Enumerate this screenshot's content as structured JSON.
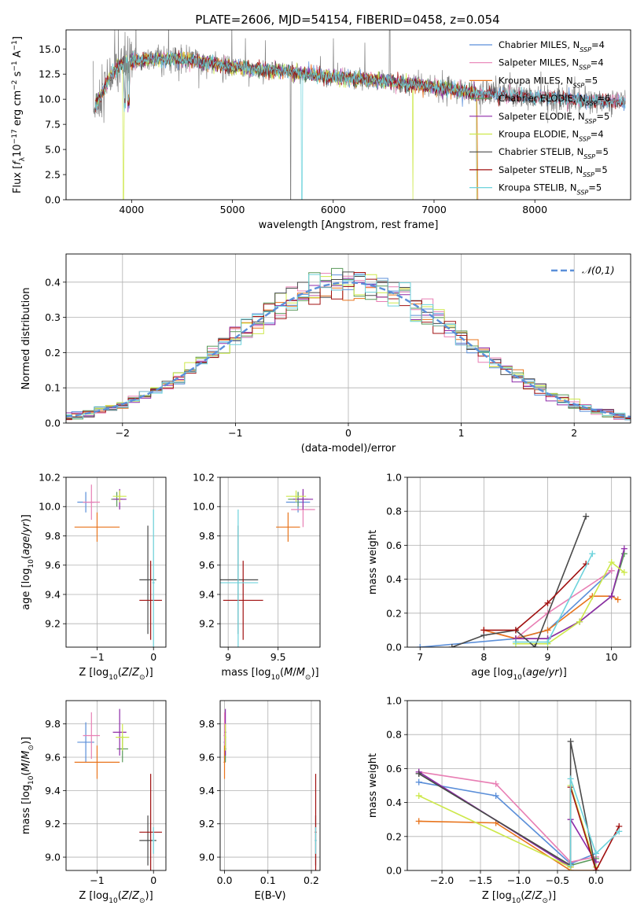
{
  "title": "PLATE=2606, MJD=54154, FIBERID=0458, z=0.054",
  "colors": {
    "Chabrier MILES": "#5b8fd9",
    "Salpeter MILES": "#e87fb4",
    "Kroupa MILES": "#e8741c",
    "Chabrier ELODIE": "#5a9a5a",
    "Salpeter ELODIE": "#8e2aa8",
    "Kroupa ELODIE": "#cde84a",
    "Chabrier STELIB": "#4a4a4a",
    "Salpeter STELIB": "#a01010",
    "Kroupa STELIB": "#6dd3dc",
    "spectrum": "#808080",
    "normal": "#5b8fd9"
  },
  "chart_data": [
    {
      "id": "spectrum",
      "type": "line",
      "xlabel": "wavelength [Angstrom, rest frame]",
      "ylabel": "Flux [f_λ10^-17 erg cm^-2 s^-1 A^-1]",
      "xlim": [
        3350,
        8950
      ],
      "ylim": [
        0,
        16.9
      ],
      "xticks": [
        4000,
        5000,
        6000,
        7000,
        8000
      ],
      "yticks": [
        0.0,
        2.5,
        5.0,
        7.5,
        10.0,
        12.5,
        15.0
      ],
      "ytick_labels": [
        "0.0",
        "2.5",
        "5.0",
        "7.5",
        "10.0",
        "12.5",
        "15.0"
      ],
      "legend_position": "top-right",
      "legend": [
        {
          "model": "Chabrier MILES",
          "label": "Chabrier MILES, N",
          "sub": "SSP",
          "tail": "=4"
        },
        {
          "model": "Salpeter MILES",
          "label": "Salpeter MILES, N",
          "sub": "SSP",
          "tail": "=4"
        },
        {
          "model": "Kroupa MILES",
          "label": "Kroupa MILES, N",
          "sub": "SSP",
          "tail": "=5"
        },
        {
          "model": "Chabrier ELODIE",
          "label": "Chabrier ELODIE, N",
          "sub": "SSP",
          "tail": "=6"
        },
        {
          "model": "Salpeter ELODIE",
          "label": "Salpeter ELODIE, N",
          "sub": "SSP",
          "tail": "=5"
        },
        {
          "model": "Kroupa ELODIE",
          "label": "Kroupa ELODIE, N",
          "sub": "SSP",
          "tail": "=4"
        },
        {
          "model": "Chabrier STELIB",
          "label": "Chabrier STELIB, N",
          "sub": "SSP",
          "tail": "=5"
        },
        {
          "model": "Salpeter STELIB",
          "label": "Salpeter STELIB, N",
          "sub": "SSP",
          "tail": "=5"
        },
        {
          "model": "Kroupa STELIB",
          "label": "Kroupa STELIB, N",
          "sub": "SSP",
          "tail": "=5"
        }
      ],
      "continuum": [
        [
          3600,
          8.5
        ],
        [
          3700,
          10.5
        ],
        [
          3800,
          12.5
        ],
        [
          3900,
          13.5
        ],
        [
          4000,
          13.8
        ],
        [
          4200,
          14.0
        ],
        [
          4500,
          14.0
        ],
        [
          4800,
          13.6
        ],
        [
          5000,
          13.2
        ],
        [
          5500,
          12.8
        ],
        [
          6000,
          12.2
        ],
        [
          6500,
          11.8
        ],
        [
          7000,
          11.2
        ],
        [
          7500,
          10.5
        ],
        [
          8000,
          10.2
        ],
        [
          8500,
          9.9
        ],
        [
          8900,
          9.7
        ]
      ]
    },
    {
      "id": "residuals",
      "type": "histogram",
      "xlabel": "(data-model)/error",
      "ylabel": "Normed distribution",
      "xlim": [
        -2.5,
        2.5
      ],
      "ylim": [
        0,
        0.48
      ],
      "xticks": [
        -2,
        -1,
        0,
        1,
        2
      ],
      "yticks": [
        0.0,
        0.1,
        0.2,
        0.3,
        0.4
      ],
      "ytick_labels": [
        "0.0",
        "0.1",
        "0.2",
        "0.3",
        "0.4"
      ],
      "legend": "𝒩(0,1)",
      "legend_position": "top-right",
      "bin_width": 0.1
    },
    {
      "id": "age_vs_Z",
      "type": "errorbar",
      "xlabel": "Z [log10(Z/Z⊙)]",
      "ylabel": "age [log10(age/yr)]",
      "xlim": [
        -1.55,
        0.22
      ],
      "ylim": [
        9.04,
        10.2
      ],
      "xticks": [
        -1,
        0
      ],
      "yticks": [
        9.2,
        9.4,
        9.6,
        9.8,
        10.0,
        10.2
      ],
      "ytick_labels": [
        "9.2",
        "9.4",
        "9.6",
        "9.8",
        "10.0",
        "10.2"
      ],
      "points": [
        {
          "model": "Chabrier MILES",
          "x": -1.2,
          "xerr": 0.15,
          "y": 10.03,
          "yerr": 0.07
        },
        {
          "model": "Salpeter MILES",
          "x": -1.1,
          "xerr": 0.15,
          "y": 10.03,
          "yerr": 0.12
        },
        {
          "model": "Kroupa MILES",
          "x": -1.0,
          "xerr": 0.4,
          "y": 9.86,
          "yerr": 0.1
        },
        {
          "model": "Chabrier ELODIE",
          "x": -0.65,
          "xerr": 0.1,
          "y": 10.05,
          "yerr": 0.05
        },
        {
          "model": "Salpeter ELODIE",
          "x": -0.6,
          "xerr": 0.12,
          "y": 10.05,
          "yerr": 0.07
        },
        {
          "model": "Kroupa ELODIE",
          "x": -0.6,
          "xerr": 0.12,
          "y": 10.07,
          "yerr": 0.04
        },
        {
          "model": "Chabrier STELIB",
          "x": -0.1,
          "xerr": 0.15,
          "y": 9.5,
          "yerr": 0.37
        },
        {
          "model": "Salpeter STELIB",
          "x": -0.05,
          "xerr": 0.2,
          "y": 9.36,
          "yerr": 0.27
        },
        {
          "model": "Kroupa STELIB",
          "x": 0.0,
          "xerr": 0.02,
          "y": 9.48,
          "yerr": 0.5
        }
      ]
    },
    {
      "id": "age_vs_mass",
      "type": "errorbar",
      "xlabel": "mass [log10(M/M⊙)]",
      "ylabel": "",
      "xlim": [
        8.92,
        9.92
      ],
      "ylim": [
        9.04,
        10.2
      ],
      "xticks": [
        9.0,
        9.5
      ],
      "yticks": [
        9.2,
        9.4,
        9.6,
        9.8,
        10.0,
        10.2
      ],
      "ytick_labels": [
        "9.2",
        "9.4",
        "9.6",
        "9.8",
        "10.0",
        "10.2"
      ],
      "points": [
        {
          "model": "Chabrier MILES",
          "x": 9.7,
          "xerr": 0.12,
          "y": 10.03,
          "yerr": 0.07
        },
        {
          "model": "Salpeter MILES",
          "x": 9.75,
          "xerr": 0.12,
          "y": 9.98,
          "yerr": 0.12
        },
        {
          "model": "Kroupa MILES",
          "x": 9.6,
          "xerr": 0.12,
          "y": 9.86,
          "yerr": 0.1
        },
        {
          "model": "Chabrier ELODIE",
          "x": 9.7,
          "xerr": 0.1,
          "y": 10.05,
          "yerr": 0.05
        },
        {
          "model": "Salpeter ELODIE",
          "x": 9.75,
          "xerr": 0.1,
          "y": 10.05,
          "yerr": 0.07
        },
        {
          "model": "Kroupa ELODIE",
          "x": 9.68,
          "xerr": 0.1,
          "y": 10.07,
          "yerr": 0.04
        },
        {
          "model": "Chabrier STELIB",
          "x": 9.1,
          "xerr": 0.2,
          "y": 9.5,
          "yerr": 0.37
        },
        {
          "model": "Salpeter STELIB",
          "x": 9.15,
          "xerr": 0.2,
          "y": 9.36,
          "yerr": 0.27
        },
        {
          "model": "Kroupa STELIB",
          "x": 9.1,
          "xerr": 0.2,
          "y": 9.48,
          "yerr": 0.5
        }
      ]
    },
    {
      "id": "mass_weight_vs_age",
      "type": "line",
      "xlabel": "age [log10(age/yr)]",
      "ylabel": "mass weight",
      "xlim": [
        6.8,
        10.3
      ],
      "ylim": [
        0,
        1.0
      ],
      "xticks": [
        7,
        8,
        9,
        10
      ],
      "yticks": [
        0.0,
        0.2,
        0.4,
        0.6,
        0.8,
        1.0
      ],
      "ytick_labels": [
        "0.0",
        "0.2",
        "0.4",
        "0.6",
        "0.8",
        "1.0"
      ],
      "series": [
        {
          "model": "Chabrier MILES",
          "x": [
            7.0,
            8.5,
            9.0,
            10.0
          ],
          "y": [
            0.0,
            0.05,
            0.1,
            0.45
          ]
        },
        {
          "model": "Salpeter MILES",
          "x": [
            8.0,
            8.5,
            9.0,
            10.0
          ],
          "y": [
            0.1,
            0.05,
            0.2,
            0.45
          ]
        },
        {
          "model": "Kroupa MILES",
          "x": [
            8.0,
            8.5,
            9.0,
            9.7,
            10.0,
            10.1
          ],
          "y": [
            0.1,
            0.05,
            0.1,
            0.3,
            0.3,
            0.28
          ]
        },
        {
          "model": "Chabrier ELODIE",
          "x": [
            8.5,
            9.0,
            9.5,
            10.0,
            10.2
          ],
          "y": [
            0.05,
            0.05,
            0.15,
            0.3,
            0.55
          ]
        },
        {
          "model": "Salpeter ELODIE",
          "x": [
            8.5,
            9.0,
            9.5,
            10.0,
            10.2
          ],
          "y": [
            0.05,
            0.05,
            0.15,
            0.3,
            0.58
          ]
        },
        {
          "model": "Kroupa ELODIE",
          "x": [
            8.5,
            9.0,
            9.5,
            10.0,
            10.2
          ],
          "y": [
            0.02,
            0.02,
            0.15,
            0.5,
            0.44
          ]
        },
        {
          "model": "Chabrier STELIB",
          "x": [
            7.5,
            8.0,
            8.5,
            8.8,
            9.6
          ],
          "y": [
            0.0,
            0.07,
            0.1,
            0.0,
            0.77
          ]
        },
        {
          "model": "Salpeter STELIB",
          "x": [
            8.0,
            8.5,
            9.0,
            9.6
          ],
          "y": [
            0.1,
            0.1,
            0.26,
            0.49
          ]
        },
        {
          "model": "Kroupa STELIB",
          "x": [
            8.5,
            9.0,
            9.7
          ],
          "y": [
            0.03,
            0.03,
            0.55
          ]
        }
      ]
    },
    {
      "id": "mass_vs_Z",
      "type": "errorbar",
      "xlabel": "Z [log10(Z/Z⊙)]",
      "ylabel": "mass [log10(M/M⊙)]",
      "xlim": [
        -1.55,
        0.22
      ],
      "ylim": [
        8.92,
        9.94
      ],
      "xticks": [
        -1,
        0
      ],
      "yticks": [
        9.0,
        9.2,
        9.4,
        9.6,
        9.8
      ],
      "ytick_labels": [
        "9.0",
        "9.2",
        "9.4",
        "9.6",
        "9.8"
      ],
      "points": [
        {
          "model": "Chabrier MILES",
          "x": -1.2,
          "xerr": 0.15,
          "y": 9.69,
          "yerr": 0.12
        },
        {
          "model": "Salpeter MILES",
          "x": -1.1,
          "xerr": 0.15,
          "y": 9.73,
          "yerr": 0.14
        },
        {
          "model": "Kroupa MILES",
          "x": -1.0,
          "xerr": 0.4,
          "y": 9.57,
          "yerr": 0.1
        },
        {
          "model": "Chabrier ELODIE",
          "x": -0.55,
          "xerr": 0.1,
          "y": 9.65,
          "yerr": 0.08
        },
        {
          "model": "Salpeter ELODIE",
          "x": -0.6,
          "xerr": 0.12,
          "y": 9.75,
          "yerr": 0.14
        },
        {
          "model": "Kroupa ELODIE",
          "x": -0.55,
          "xerr": 0.12,
          "y": 9.72,
          "yerr": 0.08
        },
        {
          "model": "Chabrier STELIB",
          "x": -0.1,
          "xerr": 0.15,
          "y": 9.1,
          "yerr": 0.15
        },
        {
          "model": "Salpeter STELIB",
          "x": -0.05,
          "xerr": 0.2,
          "y": 9.15,
          "yerr": 0.35
        },
        {
          "model": "Kroupa STELIB",
          "x": 0.0,
          "xerr": 0.02,
          "y": 9.1,
          "yerr": 0.08
        }
      ]
    },
    {
      "id": "mass_vs_ebv",
      "type": "errorbar",
      "xlabel": "E(B-V)",
      "ylabel": "",
      "xlim": [
        -0.01,
        0.22
      ],
      "ylim": [
        8.92,
        9.94
      ],
      "xticks": [
        0.0,
        0.1,
        0.2
      ],
      "xtick_labels": [
        "0.0",
        "0.1",
        "0.2"
      ],
      "yticks": [
        9.0,
        9.2,
        9.4,
        9.6,
        9.8
      ],
      "ytick_labels": [
        "9.0",
        "9.2",
        "9.4",
        "9.6",
        "9.8"
      ],
      "points": [
        {
          "model": "Chabrier MILES",
          "x": 0.0,
          "xerr": 0.002,
          "y": 9.69,
          "yerr": 0.12
        },
        {
          "model": "Salpeter MILES",
          "x": 0.0,
          "xerr": 0.002,
          "y": 9.73,
          "yerr": 0.14
        },
        {
          "model": "Kroupa MILES",
          "x": 0.0,
          "xerr": 0.002,
          "y": 9.57,
          "yerr": 0.1
        },
        {
          "model": "Chabrier ELODIE",
          "x": 0.002,
          "xerr": 0.002,
          "y": 9.65,
          "yerr": 0.08
        },
        {
          "model": "Salpeter ELODIE",
          "x": 0.002,
          "xerr": 0.002,
          "y": 9.75,
          "yerr": 0.14
        },
        {
          "model": "Kroupa ELODIE",
          "x": 0.002,
          "xerr": 0.002,
          "y": 9.72,
          "yerr": 0.08
        },
        {
          "model": "Chabrier STELIB",
          "x": 0.21,
          "xerr": 0.002,
          "y": 9.1,
          "yerr": 0.15
        },
        {
          "model": "Salpeter STELIB",
          "x": 0.21,
          "xerr": 0.002,
          "y": 9.15,
          "yerr": 0.35
        },
        {
          "model": "Kroupa STELIB",
          "x": 0.21,
          "xerr": 0.002,
          "y": 9.1,
          "yerr": 0.08
        }
      ]
    },
    {
      "id": "mass_weight_vs_Z",
      "type": "line",
      "xlabel": "Z [log10(Z/Z⊙)]",
      "ylabel": "mass weight",
      "xlim": [
        -2.45,
        0.45
      ],
      "ylim": [
        0,
        1.0
      ],
      "xticks": [
        -2.0,
        -1.5,
        -1.0,
        -0.5,
        0.0
      ],
      "xtick_labels": [
        "−2.0",
        "−1.5",
        "−1.0",
        "−0.5",
        "0.0"
      ],
      "yticks": [
        0.0,
        0.2,
        0.4,
        0.6,
        0.8,
        1.0
      ],
      "ytick_labels": [
        "0.0",
        "0.2",
        "0.4",
        "0.6",
        "0.8",
        "1.0"
      ],
      "series": [
        {
          "model": "Chabrier MILES",
          "x": [
            -2.3,
            -1.3,
            -0.33,
            0.0
          ],
          "y": [
            0.52,
            0.44,
            0.04,
            0.1
          ]
        },
        {
          "model": "Salpeter MILES",
          "x": [
            -2.3,
            -1.3,
            -0.33,
            0.0
          ],
          "y": [
            0.58,
            0.51,
            0.05,
            0.08
          ]
        },
        {
          "model": "Kroupa MILES",
          "x": [
            -2.3,
            -1.3,
            -0.33,
            0.0
          ],
          "y": [
            0.29,
            0.28,
            0.0,
            0.0
          ]
        },
        {
          "model": "Chabrier ELODIE",
          "x": [
            -2.3,
            -0.33,
            0.0
          ],
          "y": [
            0.57,
            0.03,
            0.07
          ]
        },
        {
          "model": "Salpeter ELODIE",
          "x": [
            -2.3,
            -0.33,
            -0.33,
            0.0
          ],
          "y": [
            0.58,
            0.02,
            0.3,
            0.05
          ]
        },
        {
          "model": "Kroupa ELODIE",
          "x": [
            -2.3,
            -0.33,
            -0.33,
            0.0
          ],
          "y": [
            0.44,
            0.02,
            0.5,
            0.02
          ]
        },
        {
          "model": "Chabrier STELIB",
          "x": [
            -2.3,
            -0.33,
            -0.33,
            0.0
          ],
          "y": [
            0.57,
            0.03,
            0.76,
            0.0
          ]
        },
        {
          "model": "Salpeter STELIB",
          "x": [
            -0.33,
            -0.33,
            0.0,
            0.3
          ],
          "y": [
            0.03,
            0.49,
            0.0,
            0.26
          ]
        },
        {
          "model": "Kroupa STELIB",
          "x": [
            -0.33,
            -0.33,
            0.0,
            0.3
          ],
          "y": [
            0.03,
            0.54,
            0.1,
            0.23
          ]
        }
      ]
    }
  ]
}
